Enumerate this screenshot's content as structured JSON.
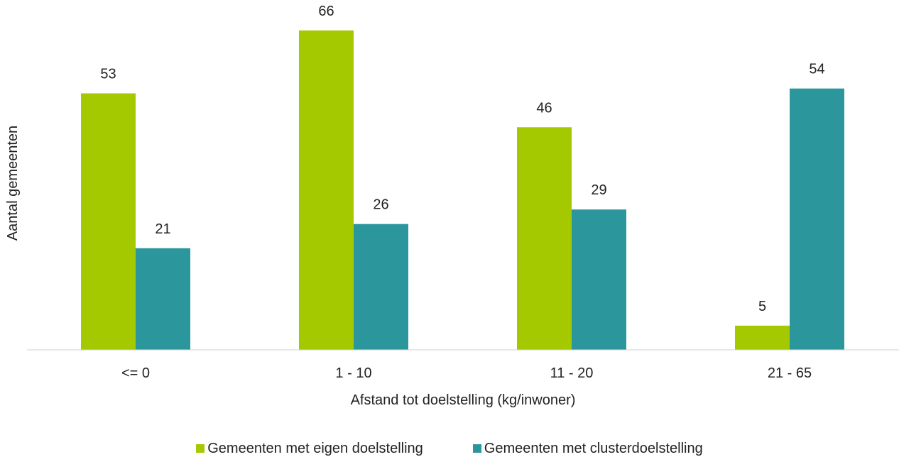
{
  "chart_data": {
    "type": "bar",
    "xlabel": "Afstand tot doelstelling (kg/inwoner)",
    "ylabel": "Aantal gemeenten",
    "categories": [
      "<= 0",
      "1 - 10",
      "11 - 20",
      "21 - 65"
    ],
    "ylim": [
      0,
      70
    ],
    "grid": false,
    "legend": "bottom",
    "series": [
      {
        "name": "Gemeenten met eigen doelstelling",
        "color": "#a4c900",
        "values": [
          53,
          66,
          46,
          5
        ]
      },
      {
        "name": "Gemeenten met clusterdoelstelling",
        "color": "#2b979c",
        "values": [
          21,
          26,
          29,
          54
        ]
      }
    ]
  }
}
